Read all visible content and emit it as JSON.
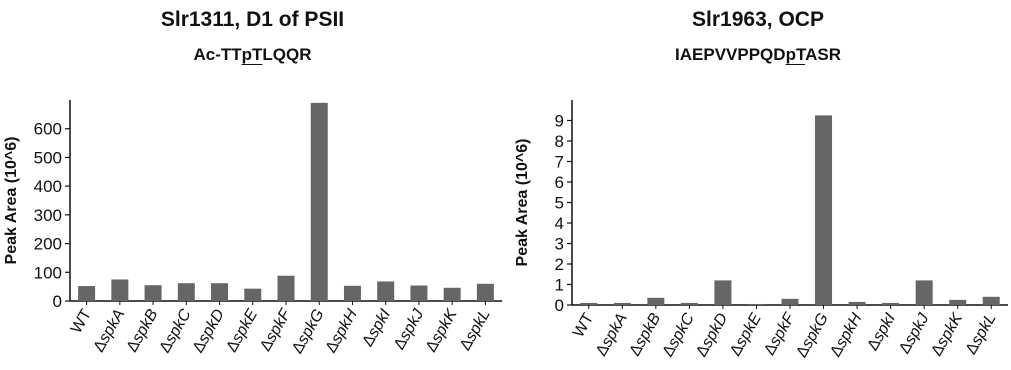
{
  "chart_data": [
    {
      "type": "bar",
      "title": "Slr1311, D1 of PSII",
      "subtitle_pre": "Ac-TT",
      "subtitle_mark": "pT",
      "subtitle_post": "LQQR",
      "ylabel": "Peak Area (10^6)",
      "xlabel": "",
      "ylim": [
        0,
        700
      ],
      "yticks": [
        0,
        100,
        200,
        300,
        400,
        500,
        600
      ],
      "categories": [
        "WT",
        "ΔspkA",
        "ΔspkB",
        "ΔspkC",
        "ΔspkD",
        "ΔspkE",
        "ΔspkF",
        "ΔspkG",
        "ΔspkH",
        "ΔspkI",
        "ΔspkJ",
        "ΔspkK",
        "ΔspkL"
      ],
      "values": [
        52,
        75,
        55,
        62,
        62,
        43,
        88,
        690,
        53,
        68,
        54,
        46,
        60
      ],
      "bar_color": "#666666",
      "grid": false
    },
    {
      "type": "bar",
      "title": "Slr1963, OCP",
      "subtitle_pre": "IAEPVVPPQD",
      "subtitle_mark": "pT",
      "subtitle_post": "ASR",
      "ylabel": "Peak Area (10^6)",
      "xlabel": "",
      "ylim": [
        0,
        10
      ],
      "yticks": [
        0,
        1,
        2,
        3,
        4,
        5,
        6,
        7,
        8,
        9
      ],
      "categories": [
        "WT",
        "ΔspkA",
        "ΔspkB",
        "ΔspkC",
        "ΔspkD",
        "ΔspkE",
        "ΔspkF",
        "ΔspkG",
        "ΔspkH",
        "ΔspkI",
        "ΔspkJ",
        "ΔspkK",
        "ΔspkL"
      ],
      "values": [
        0.1,
        0.1,
        0.35,
        0.1,
        1.2,
        0.05,
        0.3,
        9.25,
        0.15,
        0.1,
        1.2,
        0.25,
        0.4
      ],
      "bar_color": "#666666",
      "grid": false
    }
  ]
}
